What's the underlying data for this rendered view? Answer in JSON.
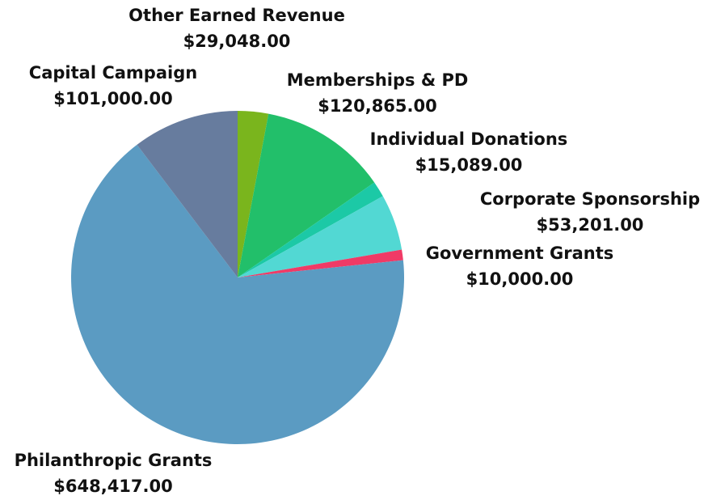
{
  "chart_data": {
    "type": "pie",
    "categories": [
      "Other Earned Revenue",
      "Memberships & PD",
      "Individual Donations",
      "Corporate Sponsorship",
      "Government Grants",
      "Philanthropic Grants",
      "Capital Campaign"
    ],
    "values": [
      29048,
      120865,
      15089,
      53201,
      10000,
      648417,
      101000
    ],
    "value_labels": [
      "$29,048.00",
      "$120,865.00",
      "$15,089.00",
      "$53,201.00",
      "$10,000.00",
      "$648,417.00",
      "$101,000.00"
    ],
    "colors": [
      "#7ab51d",
      "#22bf6a",
      "#1cc9a6",
      "#52d8d3",
      "#f03a66",
      "#5b9bc2",
      "#677c9e"
    ]
  }
}
